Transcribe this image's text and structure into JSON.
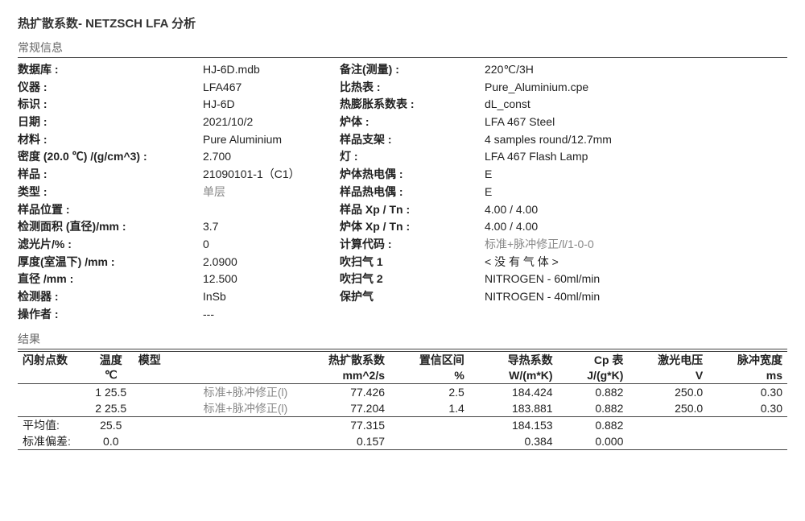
{
  "title": "热扩散系数- NETZSCH LFA 分析",
  "section_general": "常规信息",
  "info_rows": [
    {
      "k1": "数据库 :",
      "v1": "HJ-6D.mdb",
      "k2": "备注(测量) :",
      "v2": "220℃/3H"
    },
    {
      "k1": "仪器 :",
      "v1": "LFA467",
      "k2": "比热表 :",
      "v2": "Pure_Aluminium.cpe"
    },
    {
      "k1": "标识 :",
      "v1": "HJ-6D",
      "k2": "热膨胀系数表 :",
      "v2": "dL_const"
    },
    {
      "k1": "日期 :",
      "v1": "2021/10/2",
      "k2": "炉体 :",
      "v2": "LFA 467 Steel"
    },
    {
      "k1": "材料 :",
      "v1": "Pure Aluminium",
      "k2": "样品支架 :",
      "v2": "4 samples round/12.7mm"
    },
    {
      "k1": "密度 (20.0 ℃) /(g/cm^3) :",
      "v1": "2.700",
      "k2": "灯 :",
      "v2": "LFA 467 Flash Lamp"
    },
    {
      "k1": "样品 :",
      "v1": "21090101-1（C1）",
      "k2": "炉体热电偶 :",
      "v2": "E"
    },
    {
      "k1": "类型 :",
      "v1": "单层",
      "v1_faded": true,
      "k2": "样品热电偶 :",
      "v2": "E"
    },
    {
      "k1": "样品位置 :",
      "v1": "",
      "k2": "样品 Xp / Tn :",
      "v2": "4.00 / 4.00"
    },
    {
      "k1": "检测面积 (直径)/mm :",
      "v1": "3.7",
      "k2": "炉体 Xp / Tn :",
      "v2": "4.00 / 4.00"
    },
    {
      "k1": "滤光片/% :",
      "v1": "0",
      "k2": "计算代码 :",
      "v2": "标准+脉冲修正/l/1-0-0",
      "v2_faded": true
    },
    {
      "k1": "厚度(室温下) /mm :",
      "v1": "2.0900",
      "k2": "吹扫气 1",
      "v2": "< 没 有 气 体 >"
    },
    {
      "k1": "直径 /mm :",
      "v1": "12.500",
      "k2": "吹扫气 2",
      "v2": "NITROGEN - 60ml/min"
    },
    {
      "k1": "检测器 :",
      "v1": "InSb",
      "k2": "保护气",
      "v2": "NITROGEN - 40ml/min"
    },
    {
      "k1": "操作者 :",
      "v1": "---",
      "k2": "",
      "v2": ""
    }
  ],
  "section_results": "结果",
  "headers": {
    "row1": [
      "闪射点数",
      "温度",
      "模型",
      "热扩散系数",
      "置信区间",
      "导热系数",
      "Cp 表",
      "激光电压",
      "脉冲宽度"
    ],
    "row2": [
      "",
      "℃",
      "",
      "mm^2/s",
      "%",
      "W/(m*K)",
      "J/(g*K)",
      "V",
      "ms"
    ]
  },
  "data": [
    {
      "n": "1",
      "temp": "25.5",
      "model": "标准+脉冲修正(l)",
      "diff": "77.426",
      "ci": "2.5",
      "cond": "184.424",
      "cp": "0.882",
      "volt": "250.0",
      "pulse": "0.30"
    },
    {
      "n": "2",
      "temp": "25.5",
      "model": "标准+脉冲修正(l)",
      "diff": "77.204",
      "ci": "1.4",
      "cond": "183.881",
      "cp": "0.882",
      "volt": "250.0",
      "pulse": "0.30"
    }
  ],
  "avg": {
    "label": "平均值:",
    "temp": "25.5",
    "diff": "77.315",
    "cond": "184.153",
    "cp": "0.882"
  },
  "std": {
    "label": "标准偏差:",
    "temp": "0.0",
    "diff": "0.157",
    "cond": "0.384",
    "cp": "0.000"
  }
}
